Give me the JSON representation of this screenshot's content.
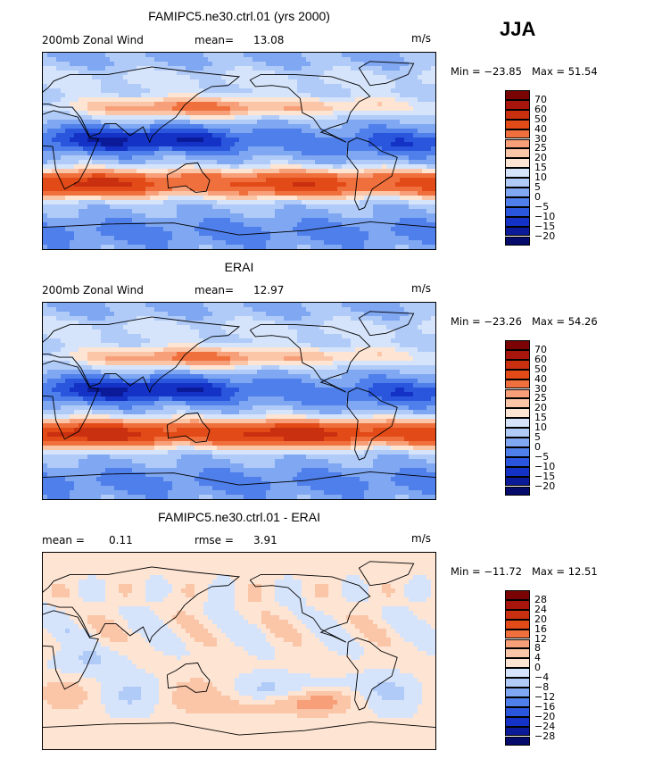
{
  "season": "JJA",
  "chart_data": [
    {
      "type": "heatmap",
      "title": "FAMIPC5.ne30.ctrl.01 (yrs 2000)",
      "left_label": "200mb Zonal Wind",
      "stat_label": "mean=",
      "stat_value": "13.08",
      "units": "m/s",
      "min_text": "Min = −23.85",
      "max_text": "Max =   51.54",
      "colorbar_labels": [
        "70",
        "60",
        "50",
        "40",
        "30",
        "25",
        "20",
        "15",
        "10",
        "5",
        "0",
        "−5",
        "−10",
        "−15",
        "−20"
      ],
      "field": "model"
    },
    {
      "type": "heatmap",
      "title": "ERAI",
      "left_label": "200mb Zonal Wind",
      "stat_label": "mean=",
      "stat_value": "12.97",
      "units": "m/s",
      "min_text": "Min = −23.26",
      "max_text": "Max =   54.26",
      "colorbar_labels": [
        "70",
        "60",
        "50",
        "40",
        "30",
        "25",
        "20",
        "15",
        "10",
        "5",
        "0",
        "−5",
        "−10",
        "−15",
        "−20"
      ],
      "field": "obs"
    },
    {
      "type": "heatmap",
      "title": "FAMIPC5.ne30.ctrl.01 - ERAI",
      "left_label": "mean =",
      "left_value": "0.11",
      "stat_label": "rmse =",
      "stat_value": "3.91",
      "units": "m/s",
      "min_text": "Min = −11.72",
      "max_text": "Max =   12.51",
      "colorbar_labels": [
        "28",
        "24",
        "20",
        "16",
        "12",
        "8",
        "4",
        "0",
        "−4",
        "−8",
        "−12",
        "−16",
        "−20",
        "−24",
        "−28"
      ],
      "field": "diff"
    }
  ],
  "colors": {
    "scale": [
      "#7a0403",
      "#a8150d",
      "#c9300f",
      "#e24a17",
      "#f0703d",
      "#f79f79",
      "#fbc6a8",
      "#fde4d3",
      "#f2f2f2",
      "#d6e4fb",
      "#b0cbf8",
      "#7fa7f2",
      "#4f7fea",
      "#2a56dd",
      "#1433c6",
      "#0b1a99",
      "#040b6b"
    ]
  }
}
